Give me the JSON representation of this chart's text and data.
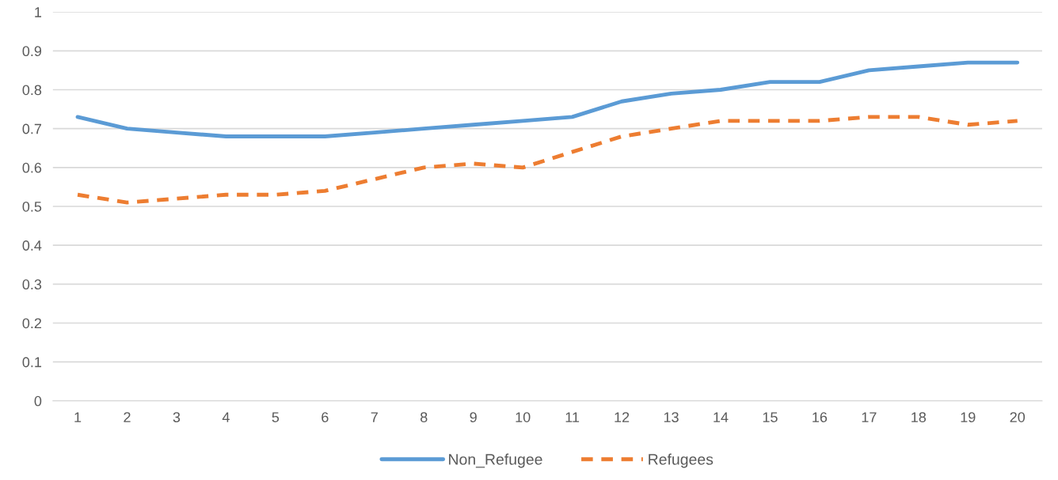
{
  "chart_data": {
    "type": "line",
    "categories": [
      "1",
      "2",
      "3",
      "4",
      "5",
      "6",
      "7",
      "8",
      "9",
      "10",
      "11",
      "12",
      "13",
      "14",
      "15",
      "16",
      "17",
      "18",
      "19",
      "20"
    ],
    "series": [
      {
        "name": "Non_Refugee",
        "color": "#5b9bd5",
        "line_style": "solid",
        "values": [
          0.73,
          0.7,
          0.69,
          0.68,
          0.68,
          0.68,
          0.69,
          0.7,
          0.71,
          0.72,
          0.73,
          0.77,
          0.79,
          0.8,
          0.82,
          0.82,
          0.85,
          0.86,
          0.87,
          0.87
        ]
      },
      {
        "name": "Refugees",
        "color": "#ed7d31",
        "line_style": "dashed",
        "values": [
          0.53,
          0.51,
          0.52,
          0.53,
          0.53,
          0.54,
          0.57,
          0.6,
          0.61,
          0.6,
          0.64,
          0.68,
          0.7,
          0.72,
          0.72,
          0.72,
          0.73,
          0.73,
          0.71,
          0.72
        ]
      }
    ],
    "ylim": [
      0,
      1
    ],
    "yticks": [
      0,
      0.1,
      0.2,
      0.3,
      0.4,
      0.5,
      0.6,
      0.7,
      0.8,
      0.9,
      1
    ],
    "grid": "y",
    "legend": "bottom",
    "marker": "none"
  }
}
